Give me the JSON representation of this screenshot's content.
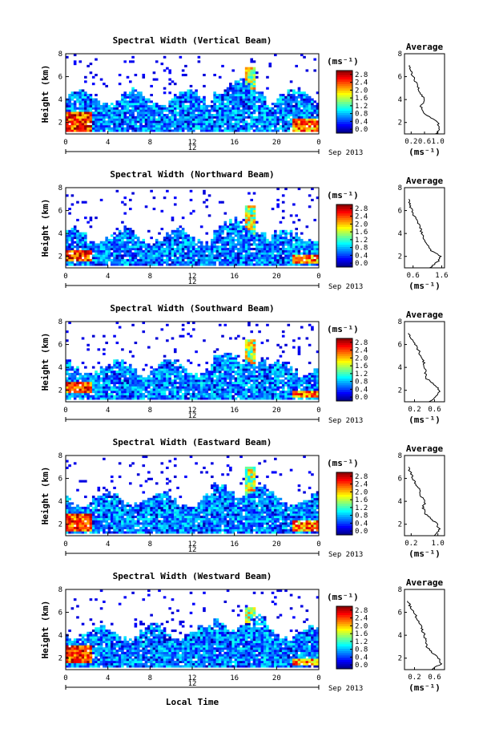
{
  "figure": {
    "xlabel": "Local Time",
    "date_label": "Sep 2013",
    "ylabel": "Height (km)",
    "colorbar_unit": "(ms⁻¹)",
    "profile_unit": "(ms⁻¹)",
    "profile_title": "Average"
  },
  "chart_data": [
    {
      "type": "heatmap",
      "title": "Spectral Width (Vertical Beam)",
      "beam": "vertical",
      "xlabel": "Local Time",
      "ylabel": "Height (km)",
      "xlim": [
        0,
        24
      ],
      "ylim": [
        1,
        8
      ],
      "x_ticks": [
        "0",
        "4",
        "8",
        "12",
        "16",
        "20",
        "0"
      ],
      "day_ticks": [
        "12"
      ],
      "y_ticks": [
        "2",
        "4",
        "6",
        "8"
      ],
      "colorbar": {
        "range": [
          0.0,
          2.8
        ],
        "ticks": [
          "2.8",
          "2.4",
          "2.0",
          "1.6",
          "1.2",
          "0.8",
          "0.4",
          "0.0"
        ]
      },
      "features": {
        "cloud_top_km": 4.2,
        "red_patch_start_km": [
          1.2,
          3.0
        ],
        "red_patch_end_km": [
          1.2,
          2.4
        ],
        "spike_time_h": 17.5,
        "spike_top_km": 6.8
      },
      "profile": {
        "title": "Average",
        "xlabel": "(ms⁻¹)",
        "x_ticks": [
          "0.2",
          "0.6",
          "1.0"
        ],
        "y_ticks": [
          "2",
          "4",
          "6",
          "8"
        ],
        "xlim": [
          0.0,
          1.2
        ],
        "ylim": [
          1,
          8
        ],
        "heights_km": [
          1.0,
          1.5,
          2.0,
          2.5,
          3.0,
          3.5,
          4.0,
          4.5,
          5.0,
          5.5,
          6.0,
          6.5,
          7.0
        ],
        "values": [
          0.95,
          1.05,
          1.0,
          0.72,
          0.52,
          0.5,
          0.6,
          0.48,
          0.42,
          0.35,
          0.25,
          0.2,
          0.15
        ]
      }
    },
    {
      "type": "heatmap",
      "title": "Spectral Width (Northward Beam)",
      "beam": "north",
      "xlabel": "Local Time",
      "ylabel": "Height (km)",
      "xlim": [
        0,
        24
      ],
      "ylim": [
        1,
        8
      ],
      "x_ticks": [
        "0",
        "4",
        "8",
        "12",
        "16",
        "20",
        "0"
      ],
      "day_ticks": [
        "12"
      ],
      "y_ticks": [
        "2",
        "4",
        "6",
        "8"
      ],
      "colorbar": {
        "range": [
          0.0,
          2.8
        ],
        "ticks": [
          "2.8",
          "2.4",
          "2.0",
          "1.6",
          "1.2",
          "0.8",
          "0.4",
          "0.0"
        ]
      },
      "features": {
        "cloud_top_km": 3.8,
        "red_patch_start_km": [
          1.5,
          2.6
        ],
        "red_patch_end_km": [
          1.3,
          2.2
        ],
        "spike_time_h": 17.5,
        "spike_top_km": 6.5
      },
      "profile": {
        "title": "Average",
        "xlabel": "(ms⁻¹)",
        "x_ticks": [
          "0.6",
          "1.6"
        ],
        "y_ticks": [
          "2",
          "4",
          "6",
          "8"
        ],
        "xlim": [
          0.3,
          1.7
        ],
        "ylim": [
          1,
          8
        ],
        "heights_km": [
          1.0,
          1.5,
          2.0,
          2.5,
          3.0,
          3.5,
          4.0,
          4.5,
          5.0,
          5.5,
          6.0,
          6.5,
          7.0
        ],
        "values": [
          1.2,
          1.45,
          1.55,
          1.25,
          1.1,
          1.0,
          0.9,
          0.85,
          0.75,
          0.65,
          0.55,
          0.5,
          0.45
        ]
      }
    },
    {
      "type": "heatmap",
      "title": "Spectral Width (Southward Beam)",
      "beam": "south",
      "xlabel": "Local Time",
      "ylabel": "Height (km)",
      "xlim": [
        0,
        24
      ],
      "ylim": [
        1,
        8
      ],
      "x_ticks": [
        "0",
        "4",
        "8",
        "12",
        "16",
        "20",
        "0"
      ],
      "day_ticks": [
        "12"
      ],
      "y_ticks": [
        "2",
        "4",
        "6",
        "8"
      ],
      "colorbar": {
        "range": [
          0.0,
          2.8
        ],
        "ticks": [
          "2.8",
          "2.4",
          "2.0",
          "1.6",
          "1.2",
          "0.8",
          "0.4",
          "0.0"
        ]
      },
      "features": {
        "cloud_top_km": 4.0,
        "red_patch_start_km": [
          1.8,
          2.8
        ],
        "red_patch_end_km": [
          1.3,
          2.0
        ],
        "spike_time_h": 17.5,
        "spike_top_km": 6.5
      },
      "profile": {
        "title": "Average",
        "xlabel": "(ms⁻¹)",
        "x_ticks": [
          "0.2",
          "0.6"
        ],
        "y_ticks": [
          "2",
          "4",
          "6",
          "8"
        ],
        "xlim": [
          0.0,
          0.8
        ],
        "ylim": [
          1,
          8
        ],
        "heights_km": [
          1.0,
          1.5,
          2.0,
          2.5,
          3.0,
          3.5,
          4.0,
          4.5,
          5.0,
          5.5,
          6.0,
          6.5,
          7.0
        ],
        "values": [
          0.5,
          0.65,
          0.7,
          0.6,
          0.45,
          0.42,
          0.4,
          0.38,
          0.32,
          0.28,
          0.22,
          0.15,
          0.08
        ]
      }
    },
    {
      "type": "heatmap",
      "title": "Spectral Width (Eastward Beam)",
      "beam": "east",
      "xlabel": "Local Time",
      "ylabel": "Height (km)",
      "xlim": [
        0,
        24
      ],
      "ylim": [
        1,
        8
      ],
      "x_ticks": [
        "0",
        "4",
        "8",
        "12",
        "16",
        "20",
        "0"
      ],
      "day_ticks": [
        "12"
      ],
      "y_ticks": [
        "2",
        "4",
        "6",
        "8"
      ],
      "colorbar": {
        "range": [
          0.0,
          2.8
        ],
        "ticks": [
          "2.8",
          "2.4",
          "2.0",
          "1.6",
          "1.2",
          "0.8",
          "0.4",
          "0.0"
        ]
      },
      "features": {
        "cloud_top_km": 4.2,
        "red_patch_start_km": [
          1.3,
          3.0
        ],
        "red_patch_end_km": [
          1.3,
          2.3
        ],
        "spike_time_h": 17.5,
        "spike_top_km": 7.0
      },
      "profile": {
        "title": "Average",
        "xlabel": "(ms⁻¹)",
        "x_ticks": [
          "0.2",
          "1.0"
        ],
        "y_ticks": [
          "2",
          "4",
          "6",
          "8"
        ],
        "xlim": [
          0.0,
          1.2
        ],
        "ylim": [
          1,
          8
        ],
        "heights_km": [
          1.0,
          1.5,
          2.0,
          2.5,
          3.0,
          3.5,
          4.0,
          4.5,
          5.0,
          5.5,
          6.0,
          6.5,
          7.0
        ],
        "values": [
          0.9,
          1.05,
          0.98,
          0.8,
          0.6,
          0.55,
          0.62,
          0.5,
          0.45,
          0.35,
          0.25,
          0.18,
          0.12
        ]
      }
    },
    {
      "type": "heatmap",
      "title": "Spectral Width (Westward Beam)",
      "beam": "west",
      "xlabel": "Local Time",
      "ylabel": "Height (km)",
      "xlim": [
        0,
        24
      ],
      "ylim": [
        1,
        8
      ],
      "x_ticks": [
        "0",
        "4",
        "8",
        "12",
        "16",
        "20",
        "0"
      ],
      "day_ticks": [
        "12"
      ],
      "y_ticks": [
        "2",
        "4",
        "6",
        "8"
      ],
      "colorbar": {
        "range": [
          0.0,
          2.8
        ],
        "ticks": [
          "2.8",
          "2.4",
          "2.0",
          "1.6",
          "1.2",
          "0.8",
          "0.4",
          "0.0"
        ]
      },
      "features": {
        "cloud_top_km": 4.3,
        "red_patch_start_km": [
          1.6,
          3.1
        ],
        "red_patch_end_km": [
          1.3,
          2.0
        ],
        "spike_time_h": 17.5,
        "spike_top_km": 6.5
      },
      "profile": {
        "title": "Average",
        "xlabel": "(ms⁻¹)",
        "x_ticks": [
          "0.2",
          "0.6"
        ],
        "y_ticks": [
          "2",
          "4",
          "6",
          "8"
        ],
        "xlim": [
          0.0,
          0.8
        ],
        "ylim": [
          1,
          8
        ],
        "heights_km": [
          1.0,
          1.5,
          2.0,
          2.5,
          3.0,
          3.5,
          4.0,
          4.5,
          5.0,
          5.5,
          6.0,
          6.5,
          7.0
        ],
        "values": [
          0.55,
          0.72,
          0.68,
          0.55,
          0.45,
          0.42,
          0.4,
          0.35,
          0.3,
          0.25,
          0.18,
          0.12,
          0.06
        ]
      }
    }
  ]
}
